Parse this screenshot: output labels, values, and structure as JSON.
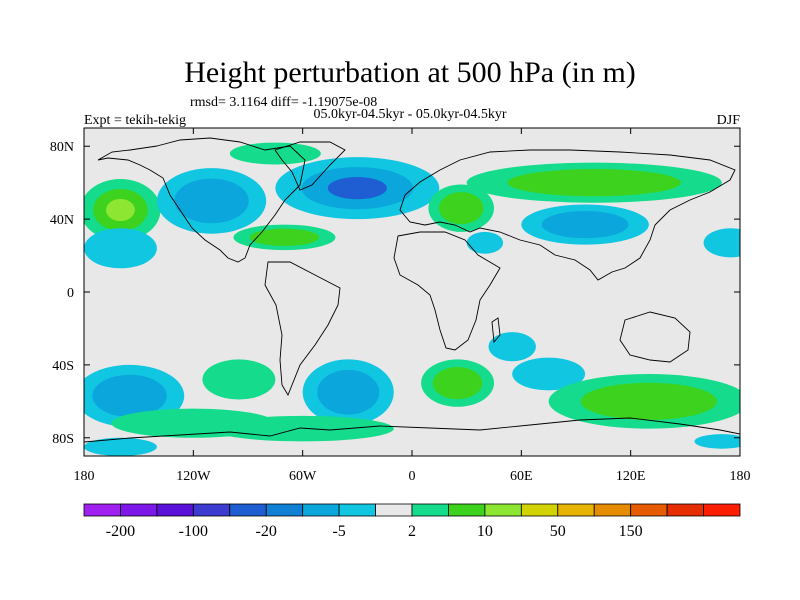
{
  "chart_data": {
    "type": "contour-map",
    "title": "Height perturbation at 500 hPa (in m)",
    "stats_line": "rmsd= 3.1164 diff= -1.19075e-08",
    "period_line": "05.0kyr-04.5kyr - 05.0kyr-04.5kyr",
    "left_label": "Expt = tekih-tekig",
    "right_label": "DJF",
    "lon_range": [
      -180,
      180
    ],
    "lat_range": [
      -90,
      90
    ],
    "x_ticks": [
      {
        "lon": -180,
        "label": "180"
      },
      {
        "lon": -120,
        "label": "120W"
      },
      {
        "lon": -60,
        "label": "60W"
      },
      {
        "lon": 0,
        "label": "0"
      },
      {
        "lon": 60,
        "label": "60E"
      },
      {
        "lon": 120,
        "label": "120E"
      },
      {
        "lon": 180,
        "label": "180"
      }
    ],
    "y_ticks": [
      {
        "lat": 80,
        "label": "80N"
      },
      {
        "lat": 40,
        "label": "40N"
      },
      {
        "lat": 0,
        "label": "0"
      },
      {
        "lat": -40,
        "label": "40S"
      },
      {
        "lat": -80,
        "label": "80S"
      }
    ],
    "colorbar": {
      "colors": [
        "#a020f0",
        "#7d18e8",
        "#5a12d8",
        "#3c3cd0",
        "#1e5ed2",
        "#0f80d4",
        "#0aa6dc",
        "#10c6e0",
        "#e8e8e8",
        "#14dc8c",
        "#3cd21e",
        "#8ce632",
        "#d2d200",
        "#e6b400",
        "#e68c00",
        "#e65a00",
        "#e62d00",
        "#ff1e00"
      ],
      "labels": [
        {
          "boundary": 1,
          "text": "-200"
        },
        {
          "boundary": 3,
          "text": "-100"
        },
        {
          "boundary": 5,
          "text": "-20"
        },
        {
          "boundary": 7,
          "text": "-5"
        },
        {
          "boundary": 9,
          "text": "2"
        },
        {
          "boundary": 11,
          "text": "10"
        },
        {
          "boundary": 13,
          "text": "50"
        },
        {
          "boundary": 15,
          "text": "150"
        }
      ]
    },
    "fill_legend": {
      "background": "#e8e8e8",
      "neg_light": "#10c6e0",
      "neg_mid": "#0aa6dc",
      "neg_dark": "#1e5ed2",
      "pos_light": "#14dc8c",
      "pos_mid": "#3cd21e",
      "pos_strong": "#8ce632"
    },
    "anomalies": [
      {
        "name": "north-pacific-pos",
        "lon": -160,
        "lat": 45,
        "rx": 22,
        "ry": 17,
        "levels": [
          "pos_light",
          "pos_mid",
          "pos_strong"
        ]
      },
      {
        "name": "north-america-neg",
        "lon": -110,
        "lat": 50,
        "rx": 30,
        "ry": 18,
        "levels": [
          "neg_light",
          "neg_mid"
        ]
      },
      {
        "name": "pacific-neg-30n",
        "lon": -160,
        "lat": 24,
        "rx": 20,
        "ry": 11,
        "levels": [
          "neg_light"
        ]
      },
      {
        "name": "atlantic-neg",
        "lon": -30,
        "lat": 57,
        "rx": 45,
        "ry": 17,
        "levels": [
          "neg_light",
          "neg_mid",
          "neg_dark"
        ]
      },
      {
        "name": "greenland-pos",
        "lon": -75,
        "lat": 76,
        "rx": 25,
        "ry": 6,
        "levels": [
          "pos_light"
        ]
      },
      {
        "name": "atlantic-pos-30n",
        "lon": -70,
        "lat": 30,
        "rx": 28,
        "ry": 7,
        "levels": [
          "pos_light",
          "pos_mid"
        ]
      },
      {
        "name": "europe-pos",
        "lon": 27,
        "lat": 46,
        "rx": 18,
        "ry": 13,
        "levels": [
          "pos_light",
          "pos_mid"
        ]
      },
      {
        "name": "asia-pos",
        "lon": 100,
        "lat": 60,
        "rx": 70,
        "ry": 11,
        "levels": [
          "pos_light",
          "pos_mid"
        ]
      },
      {
        "name": "east-asia-neg",
        "lon": 95,
        "lat": 37,
        "rx": 35,
        "ry": 11,
        "levels": [
          "neg_light",
          "neg_mid"
        ]
      },
      {
        "name": "arabia-neg",
        "lon": 40,
        "lat": 27,
        "rx": 10,
        "ry": 6,
        "levels": [
          "neg_light"
        ]
      },
      {
        "name": "east-pacific-neg",
        "lon": 175,
        "lat": 27,
        "rx": 15,
        "ry": 8,
        "levels": [
          "neg_light"
        ]
      },
      {
        "name": "south-pacific-neg",
        "lon": -155,
        "lat": -57,
        "rx": 30,
        "ry": 17,
        "levels": [
          "neg_light",
          "neg_mid"
        ]
      },
      {
        "name": "south-pacific-pos",
        "lon": -95,
        "lat": -48,
        "rx": 20,
        "ry": 11,
        "levels": [
          "pos_light"
        ]
      },
      {
        "name": "south-america-pos",
        "lon": -120,
        "lat": -72,
        "rx": 45,
        "ry": 8,
        "levels": [
          "pos_light"
        ]
      },
      {
        "name": "south-atlantic-neg",
        "lon": -35,
        "lat": -55,
        "rx": 25,
        "ry": 18,
        "levels": [
          "neg_light",
          "neg_mid"
        ]
      },
      {
        "name": "south-atlantic-pos",
        "lon": 25,
        "lat": -50,
        "rx": 20,
        "ry": 13,
        "levels": [
          "pos_light",
          "pos_mid"
        ]
      },
      {
        "name": "indian-neg",
        "lon": 75,
        "lat": -45,
        "rx": 20,
        "ry": 9,
        "levels": [
          "neg_light"
        ]
      },
      {
        "name": "indian-neg-south",
        "lon": 55,
        "lat": -30,
        "rx": 13,
        "ry": 8,
        "levels": [
          "neg_light"
        ]
      },
      {
        "name": "southern-pos-east",
        "lon": 130,
        "lat": -60,
        "rx": 55,
        "ry": 15,
        "levels": [
          "pos_light",
          "pos_mid"
        ]
      },
      {
        "name": "antarctic-pos",
        "lon": -60,
        "lat": -75,
        "rx": 50,
        "ry": 7,
        "levels": [
          "pos_light"
        ]
      },
      {
        "name": "antarctic-neg-west",
        "lon": -160,
        "lat": -85,
        "rx": 20,
        "ry": 5,
        "levels": [
          "neg_light"
        ]
      },
      {
        "name": "antarctic-neg-east",
        "lon": 170,
        "lat": -82,
        "rx": 15,
        "ry": 4,
        "levels": [
          "neg_light"
        ]
      }
    ]
  }
}
